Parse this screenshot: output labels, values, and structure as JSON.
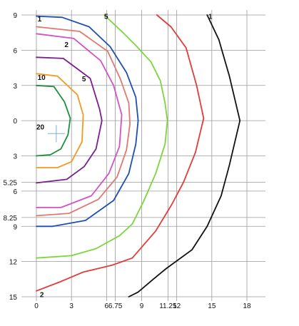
{
  "chart_data": {
    "type": "line",
    "xlim": [
      0,
      18
    ],
    "ylim_signed": [
      -15,
      9
    ],
    "grid": true,
    "x_ticks": [
      {
        "value": 0,
        "label": "0"
      },
      {
        "value": 3,
        "label": "3"
      },
      {
        "value": 6,
        "label": "6"
      },
      {
        "value": 6.75,
        "label": "6.75"
      },
      {
        "value": 9,
        "label": "9"
      },
      {
        "value": 11.25,
        "label": "11.25"
      },
      {
        "value": 12,
        "label": "12"
      },
      {
        "value": 15,
        "label": "15"
      },
      {
        "value": 18,
        "label": "18"
      }
    ],
    "y_ticks": [
      {
        "value": 9,
        "label": "9"
      },
      {
        "value": 6,
        "label": "6"
      },
      {
        "value": 3,
        "label": "3"
      },
      {
        "value": 0,
        "label": "0"
      },
      {
        "value": -3,
        "label": "3"
      },
      {
        "value": -5.25,
        "label": "5.25"
      },
      {
        "value": -6,
        "label": "6"
      },
      {
        "value": -8.25,
        "label": "8.25"
      },
      {
        "value": -9,
        "label": "9"
      },
      {
        "value": -12,
        "label": "12"
      },
      {
        "value": -15,
        "label": "15"
      }
    ],
    "series": [
      {
        "color": "#1a8f3c",
        "points": [
          [
            0,
            3
          ],
          [
            1.5,
            2.9
          ],
          [
            2.4,
            1.6
          ],
          [
            2.9,
            0.2
          ],
          [
            2.7,
            -1.2
          ],
          [
            2.1,
            -2.4
          ],
          [
            1.2,
            -2.9
          ],
          [
            0,
            -3
          ]
        ]
      },
      {
        "color": "#f39a1e",
        "points": [
          [
            0,
            4
          ],
          [
            1.8,
            3.8
          ],
          [
            3.5,
            2.2
          ],
          [
            4,
            0.5
          ],
          [
            3.9,
            -1.8
          ],
          [
            3,
            -3.5
          ],
          [
            1.8,
            -4
          ],
          [
            0,
            -4
          ]
        ]
      },
      {
        "color": "#7a1f8f",
        "points": [
          [
            0,
            5.4
          ],
          [
            2.3,
            5.3
          ],
          [
            4.6,
            3.6
          ],
          [
            5.4,
            1
          ],
          [
            5.6,
            0
          ],
          [
            5.1,
            -2.4
          ],
          [
            4.1,
            -3.9
          ],
          [
            2.6,
            -5
          ],
          [
            0,
            -5.3
          ]
        ]
      },
      {
        "color": "#d650c6",
        "points": [
          [
            0,
            7.4
          ],
          [
            3.2,
            7
          ],
          [
            5.5,
            5.1
          ],
          [
            6.6,
            3
          ],
          [
            7.3,
            0.5
          ],
          [
            7.1,
            -2.2
          ],
          [
            6.2,
            -4.5
          ],
          [
            4.7,
            -6.4
          ],
          [
            2.1,
            -7.4
          ],
          [
            0,
            -7.4
          ]
        ]
      },
      {
        "color": "#e07870",
        "points": [
          [
            0,
            8
          ],
          [
            3.7,
            7.6
          ],
          [
            6.1,
            5.9
          ],
          [
            7.2,
            3.5
          ],
          [
            7.9,
            1.5
          ],
          [
            8,
            -0.3
          ],
          [
            7.7,
            -2.5
          ],
          [
            6.9,
            -4.8
          ],
          [
            5.3,
            -6.7
          ],
          [
            2.8,
            -7.9
          ],
          [
            0,
            -8.1
          ]
        ]
      },
      {
        "color": "#1e4fb4",
        "points": [
          [
            0,
            8.9
          ],
          [
            2.2,
            8.8
          ],
          [
            4.5,
            8
          ],
          [
            6.3,
            6.3
          ],
          [
            7.7,
            4.1
          ],
          [
            8.5,
            2
          ],
          [
            8.7,
            0
          ],
          [
            8.5,
            -2
          ],
          [
            7.9,
            -4.5
          ],
          [
            6.6,
            -6.8
          ],
          [
            4.2,
            -8.5
          ],
          [
            1.4,
            -9
          ],
          [
            0,
            -9
          ]
        ]
      },
      {
        "color": "#7ad63a",
        "points": [
          [
            5.8,
            9
          ],
          [
            7.4,
            7.5
          ],
          [
            8.6,
            6.3
          ],
          [
            9.8,
            5
          ],
          [
            10.6,
            3.4
          ],
          [
            11,
            1.5
          ],
          [
            11.2,
            0
          ],
          [
            11,
            -2
          ],
          [
            10.2,
            -4.5
          ],
          [
            9.2,
            -6.8
          ],
          [
            8.2,
            -8.8
          ],
          [
            7.1,
            -9.8
          ],
          [
            5.1,
            -10.9
          ],
          [
            3,
            -11.5
          ],
          [
            0,
            -11.7
          ]
        ]
      },
      {
        "color": "#e23b38",
        "points": [
          [
            10.3,
            9
          ],
          [
            11.5,
            8
          ],
          [
            12.8,
            6.2
          ],
          [
            13.7,
            3
          ],
          [
            14.3,
            0.2
          ],
          [
            13.6,
            -2.7
          ],
          [
            12.6,
            -5.2
          ],
          [
            11.6,
            -7.1
          ],
          [
            10.2,
            -9.4
          ],
          [
            8.2,
            -11.7
          ],
          [
            6.5,
            -12.3
          ],
          [
            4,
            -12.9
          ],
          [
            2.1,
            -13.7
          ],
          [
            0,
            -14.5
          ]
        ]
      },
      {
        "color": "#111111",
        "points": [
          [
            14.6,
            9
          ],
          [
            15.6,
            6.9
          ],
          [
            16.5,
            3.8
          ],
          [
            17.4,
            0
          ],
          [
            16.5,
            -3.8
          ],
          [
            15.8,
            -6.4
          ],
          [
            14.6,
            -9
          ],
          [
            13.3,
            -11
          ],
          [
            11.1,
            -12.6
          ],
          [
            10,
            -13.5
          ],
          [
            8.7,
            -14.6
          ],
          [
            7.9,
            -15
          ]
        ]
      }
    ],
    "annotations": [
      {
        "text": "1",
        "x": 0.1,
        "y": 8.7
      },
      {
        "text": "2",
        "x": 2.4,
        "y": 6.5
      },
      {
        "text": "5",
        "x": 5.8,
        "y": 8.9
      },
      {
        "text": "1",
        "x": 14.7,
        "y": 8.9
      },
      {
        "text": "10",
        "x": 0.1,
        "y": 3.7
      },
      {
        "text": "5",
        "x": 3.9,
        "y": 3.6
      },
      {
        "text": "20",
        "x": 0,
        "y": -0.5
      },
      {
        "text": "2",
        "x": 0.3,
        "y": -14.8
      }
    ]
  }
}
